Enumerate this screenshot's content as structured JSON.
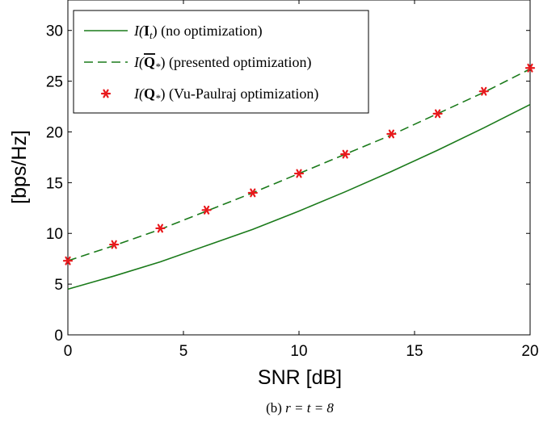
{
  "chart_data": {
    "type": "line",
    "xlabel": "SNR [dB]",
    "ylabel": "[bps/Hz]",
    "xlim": [
      0,
      20
    ],
    "ylim": [
      0,
      33
    ],
    "xticks": [
      0,
      5,
      10,
      15,
      20
    ],
    "yticks": [
      0,
      5,
      10,
      15,
      20,
      25,
      30
    ],
    "grid": false,
    "legend_position": "top-left",
    "series": [
      {
        "name": "I(I_t) (no optimization)",
        "style": "solid",
        "color": "#1a7a1a",
        "x": [
          0,
          2,
          4,
          6,
          8,
          10,
          12,
          14,
          16,
          18,
          20
        ],
        "y": [
          4.5,
          5.8,
          7.2,
          8.8,
          10.4,
          12.2,
          14.1,
          16.1,
          18.2,
          20.4,
          22.7
        ]
      },
      {
        "name": "I(Q̄_*) (presented optimization)",
        "style": "dashed",
        "color": "#1a7a1a",
        "x": [
          0,
          2,
          4,
          6,
          8,
          10,
          12,
          14,
          16,
          18,
          20
        ],
        "y": [
          7.3,
          8.8,
          10.4,
          12.2,
          14.0,
          15.9,
          17.8,
          19.7,
          21.8,
          23.9,
          26.2
        ]
      },
      {
        "name": "I(Q_*) (Vu-Paulraj optimization)",
        "style": "markers",
        "color": "#e8191c",
        "x": [
          0,
          2,
          4,
          6,
          8,
          10,
          12,
          14,
          16,
          18,
          20
        ],
        "y": [
          7.3,
          8.9,
          10.5,
          12.3,
          14.0,
          15.9,
          17.8,
          19.8,
          21.8,
          24.0,
          26.3
        ]
      }
    ]
  },
  "legend": {
    "entries": [
      {
        "label_prefix": "I(",
        "label_bold": "I",
        "label_sub": "t",
        "label_suffix": ") (no optimization)"
      },
      {
        "label_prefix": "I(",
        "label_bold": "Q",
        "label_sub": "*",
        "label_suffix": ") (presented optimization)"
      },
      {
        "label_prefix": "I(",
        "label_bold": "Q",
        "label_sub": "*",
        "label_suffix": ") (Vu-Paulraj optimization)"
      }
    ]
  },
  "caption": {
    "prefix": "(b) ",
    "math": "r = t = 8"
  }
}
